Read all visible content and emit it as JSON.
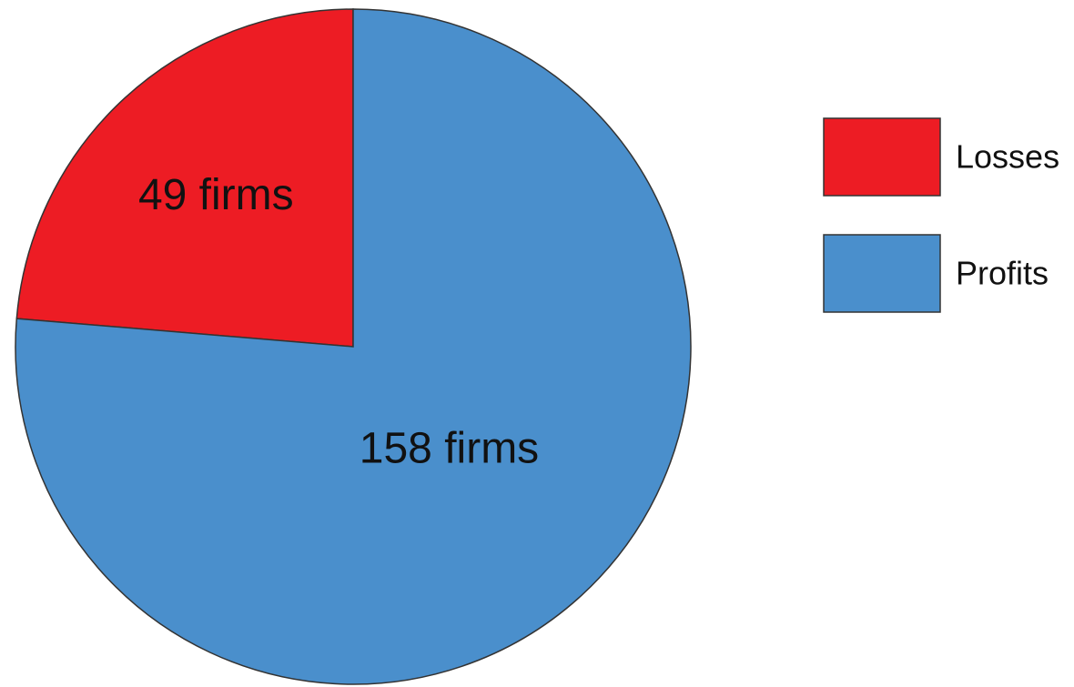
{
  "chart_data": {
    "type": "pie",
    "categories": [
      "Losses",
      "Profits"
    ],
    "values": [
      49,
      158
    ],
    "value_labels": [
      "49 firms",
      "158 firms"
    ],
    "colors": [
      "#ed1c24",
      "#4a8fcc"
    ],
    "legend": "right"
  }
}
